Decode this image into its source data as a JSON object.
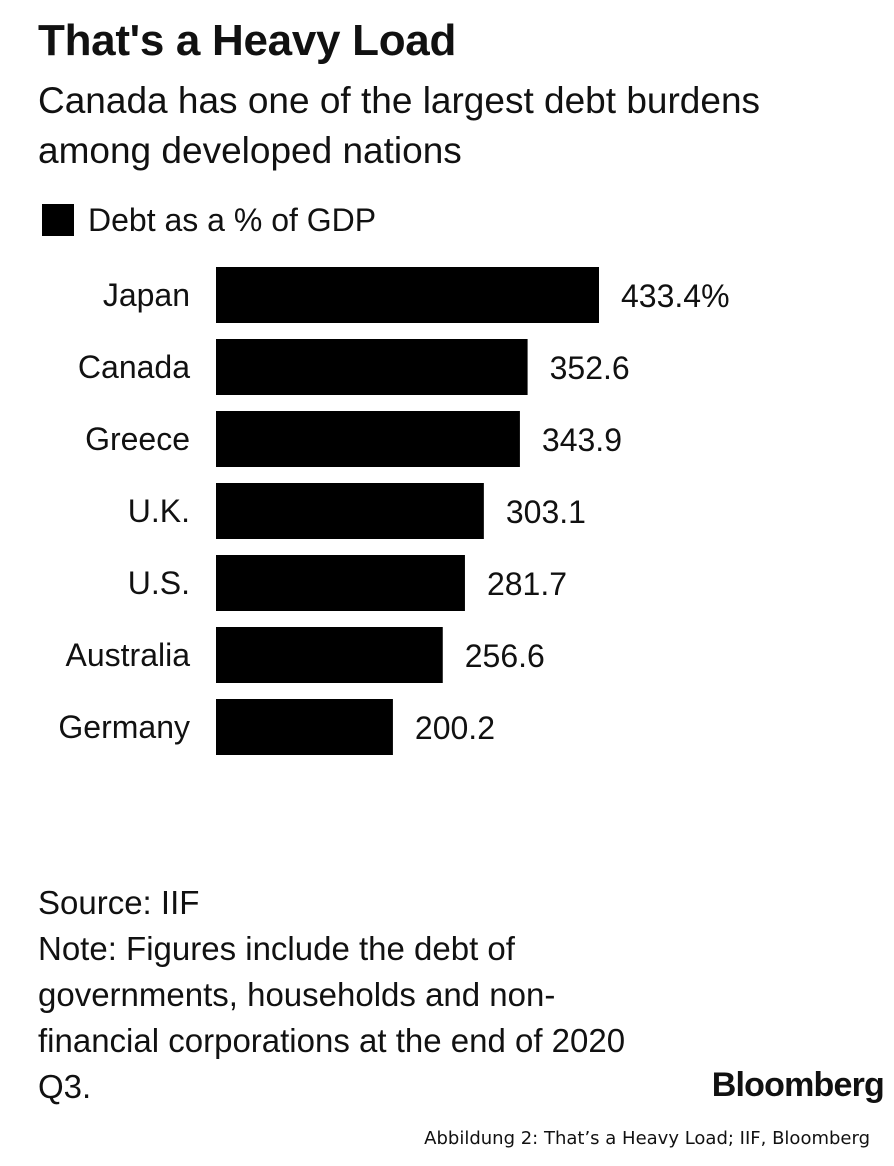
{
  "header": {
    "title": "That's a Heavy Load",
    "subtitle": "Canada has one of the largest debt burdens among developed nations"
  },
  "legend": {
    "label": "Debt as a % of GDP",
    "color": "#000000"
  },
  "chart_data": {
    "type": "bar",
    "orientation": "horizontal",
    "title": "That's a Heavy Load",
    "subtitle": "Canada has one of the largest debt burdens among developed nations",
    "categories": [
      "Japan",
      "Canada",
      "Greece",
      "U.K.",
      "U.S.",
      "Australia",
      "Germany"
    ],
    "series": [
      {
        "name": "Debt as a % of GDP",
        "values": [
          433.4,
          352.6,
          343.9,
          303.1,
          281.7,
          256.6,
          200.2
        ],
        "color": "#000000"
      }
    ],
    "value_labels": [
      "433.4%",
      "352.6",
      "343.9",
      "303.1",
      "281.7",
      "256.6",
      "200.2"
    ],
    "xlim": [
      0,
      433.4
    ],
    "grid": false,
    "legend_position": "top-left"
  },
  "notes": {
    "source": "Source: IIF",
    "note": "Note: Figures include the debt of governments, households and non-financial corporations at the end of 2020 Q3."
  },
  "brand": "Bloomberg",
  "caption": "Abbildung 2: That’s a Heavy Load; IIF, Bloomberg"
}
